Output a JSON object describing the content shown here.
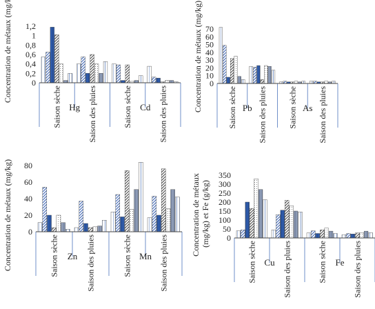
{
  "chart_data": [
    {
      "type": "bar",
      "ylabel": "Concentration de métaux (mg/kg)",
      "yticks": [
        "0",
        "0,2",
        "0,4",
        "0,6",
        "0,8",
        "1",
        "1,2"
      ],
      "ylim": [
        0,
        1.25
      ],
      "groups": [
        {
          "element": "Hg",
          "categories": [
            {
              "label": "Saison sèche",
              "values": [
                0.55,
                0.65,
                1.18,
                1.02,
                0.4,
                0.05,
                0.2
              ]
            },
            {
              "label": "Saison des pluies",
              "values": [
                0.4,
                0.55,
                0.2,
                0.6,
                0.4,
                0.2,
                0.45
              ]
            }
          ]
        },
        {
          "element": "Cd",
          "categories": [
            {
              "label": "Saison sèche",
              "values": [
                0.4,
                0.38,
                0.05,
                0.38,
                0.03,
                0.05,
                0.15
              ]
            },
            {
              "label": "Saison des pluies",
              "values": [
                0.35,
                0.12,
                0.1,
                0.02,
                0.05,
                0.05,
                0.02
              ]
            }
          ]
        }
      ]
    },
    {
      "type": "bar",
      "ylabel": "Concentration de métaux (mg/kg)",
      "yticks": [
        "0",
        "10",
        "20",
        "30",
        "40",
        "50",
        "60",
        "70"
      ],
      "ylim": [
        0,
        78
      ],
      "groups": [
        {
          "element": "Pb",
          "categories": [
            {
              "label": "Saison sèche",
              "values": [
                72,
                49,
                8,
                32,
                35,
                9,
                5
              ]
            },
            {
              "label": "Saison des pluies",
              "values": [
                22,
                21,
                23,
                5,
                23,
                22,
                17
              ]
            }
          ]
        },
        {
          "element": "As",
          "categories": [
            {
              "label": "Saison sèche",
              "values": [
                2,
                3,
                2,
                2,
                3,
                2,
                3
              ]
            },
            {
              "label": "Saison des pluies",
              "values": [
                3,
                3,
                2,
                2,
                3,
                2,
                3
              ]
            }
          ]
        }
      ]
    },
    {
      "type": "bar",
      "ylabel": "Concentration de métaux (mg/kg)",
      "yticks": [
        "0",
        "20",
        "40",
        "60",
        "80"
      ],
      "ylim": [
        0,
        86
      ],
      "groups": [
        {
          "element": "Zn",
          "categories": [
            {
              "label": "Saison sèche",
              "values": [
                11,
                54,
                20,
                5,
                20,
                11,
                3
              ]
            },
            {
              "label": "Saison des pluies",
              "values": [
                5,
                37,
                10,
                5,
                6,
                7,
                14
              ]
            }
          ]
        },
        {
          "element": "Mn",
          "categories": [
            {
              "label": "Saison sèche",
              "values": [
                24,
                45,
                18,
                74,
                27,
                51,
                84
              ]
            },
            {
              "label": "Saison des pluies",
              "values": [
                17,
                43,
                20,
                76,
                28,
                51,
                42
              ]
            }
          ]
        }
      ]
    },
    {
      "type": "bar",
      "ylabel": "Concentration de métaux (mg/kg) et Fe (g/kg)",
      "yticks": [
        "0",
        "50",
        "100",
        "150",
        "200",
        "250",
        "300",
        "350"
      ],
      "ylim": [
        0,
        352
      ],
      "groups": [
        {
          "element": "Cu",
          "categories": [
            {
              "label": "Saison sèche",
              "values": [
                40,
                45,
                200,
                165,
                330,
                270,
                213
              ]
            },
            {
              "label": "Saison des pluies",
              "values": [
                45,
                130,
                155,
                210,
                180,
                150,
                145
              ]
            }
          ]
        },
        {
          "element": "Fe",
          "categories": [
            {
              "label": "Saison sèche",
              "values": [
                28,
                40,
                25,
                45,
                55,
                38,
                25
              ]
            },
            {
              "label": "Saison des pluies",
              "values": [
                18,
                25,
                22,
                28,
                30,
                38,
                30
              ]
            }
          ]
        }
      ]
    }
  ]
}
